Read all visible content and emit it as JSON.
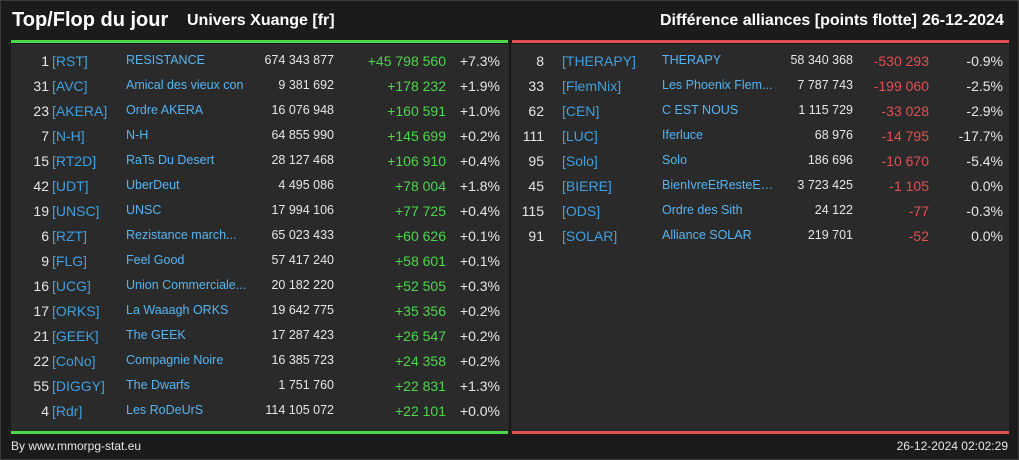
{
  "header": {
    "title": "Top/Flop du jour",
    "subtitle": "Univers Xuange [fr]",
    "right_title": "Différence alliances [points flotte]",
    "date": "26-12-2024"
  },
  "colors": {
    "top_line": "#4cd64c",
    "flop_line": "#e05050",
    "tag": "#3fa0e0",
    "name": "#56b4f0"
  },
  "top": [
    {
      "rank": "1",
      "tag": "[RST]",
      "name": "RESISTANCE",
      "points": "674 343 877",
      "diff": "+45 798 560",
      "pct": "+7.3%"
    },
    {
      "rank": "31",
      "tag": "[AVC]",
      "name": "Amical des vieux con",
      "points": "9 381 692",
      "diff": "+178 232",
      "pct": "+1.9%"
    },
    {
      "rank": "23",
      "tag": "[AKERA]",
      "name": "Ordre AKERA",
      "points": "16 076 948",
      "diff": "+160 591",
      "pct": "+1.0%"
    },
    {
      "rank": "7",
      "tag": "[N-H]",
      "name": "N-H",
      "points": "64 855 990",
      "diff": "+145 699",
      "pct": "+0.2%"
    },
    {
      "rank": "15",
      "tag": "[RT2D]",
      "name": "RaTs Du Desert",
      "points": "28 127 468",
      "diff": "+106 910",
      "pct": "+0.4%"
    },
    {
      "rank": "42",
      "tag": "[UDT]",
      "name": "UberDeut",
      "points": "4 495 086",
      "diff": "+78 004",
      "pct": "+1.8%"
    },
    {
      "rank": "19",
      "tag": "[UNSC]",
      "name": "UNSC",
      "points": "17 994 106",
      "diff": "+77 725",
      "pct": "+0.4%"
    },
    {
      "rank": "6",
      "tag": "[RZT]",
      "name": "Rezistance march...",
      "points": "65 023 433",
      "diff": "+60 626",
      "pct": "+0.1%"
    },
    {
      "rank": "9",
      "tag": "[FLG]",
      "name": "Feel Good",
      "points": "57 417 240",
      "diff": "+58 601",
      "pct": "+0.1%"
    },
    {
      "rank": "16",
      "tag": "[UCG]",
      "name": "Union Commerciale...",
      "points": "20 182 220",
      "diff": "+52 505",
      "pct": "+0.3%"
    },
    {
      "rank": "17",
      "tag": "[ORKS]",
      "name": "La Waaagh ORKS",
      "points": "19 642 775",
      "diff": "+35 356",
      "pct": "+0.2%"
    },
    {
      "rank": "21",
      "tag": "[GEEK]",
      "name": "The GEEK",
      "points": "17 287 423",
      "diff": "+26 547",
      "pct": "+0.2%"
    },
    {
      "rank": "22",
      "tag": "[CoNo]",
      "name": "Compagnie Noire",
      "points": "16 385 723",
      "diff": "+24 358",
      "pct": "+0.2%"
    },
    {
      "rank": "55",
      "tag": "[DIGGY]",
      "name": "The Dwarfs",
      "points": "1 751 760",
      "diff": "+22 831",
      "pct": "+1.3%"
    },
    {
      "rank": "4",
      "tag": "[Rdr]",
      "name": "Les RoDeUrS",
      "points": "114 105 072",
      "diff": "+22 101",
      "pct": "+0.0%"
    }
  ],
  "flop": [
    {
      "rank": "8",
      "tag": "[THERAPY]",
      "name": "THERAPY",
      "points": "58 340 368",
      "diff": "-530 293",
      "pct": "-0.9%"
    },
    {
      "rank": "33",
      "tag": "[FlemNix]",
      "name": "Les Phoenix Flem...",
      "points": "7 787 743",
      "diff": "-199 060",
      "pct": "-2.5%"
    },
    {
      "rank": "62",
      "tag": "[CEN]",
      "name": "C EST NOUS",
      "points": "1 115 729",
      "diff": "-33 028",
      "pct": "-2.9%"
    },
    {
      "rank": "111",
      "tag": "[LUC]",
      "name": "Iferluce",
      "points": "68 976",
      "diff": "-14 795",
      "pct": "-17.7%"
    },
    {
      "rank": "95",
      "tag": "[Solo]",
      "name": "Solo",
      "points": "186 696",
      "diff": "-10 670",
      "pct": "-5.4%"
    },
    {
      "rank": "45",
      "tag": "[BIERE]",
      "name": "BienIvreEtResteEC...",
      "points": "3 723 425",
      "diff": "-1 105",
      "pct": "0.0%"
    },
    {
      "rank": "115",
      "tag": "[ODS]",
      "name": "Ordre des Sith",
      "points": "24 122",
      "diff": "-77",
      "pct": "-0.3%"
    },
    {
      "rank": "91",
      "tag": "[SOLAR]",
      "name": "Alliance SOLAR",
      "points": "219 701",
      "diff": "-52",
      "pct": "0.0%"
    }
  ],
  "footer": {
    "source": "By www.mmorpg-stat.eu",
    "timestamp": "26-12-2024 02:02:29"
  }
}
